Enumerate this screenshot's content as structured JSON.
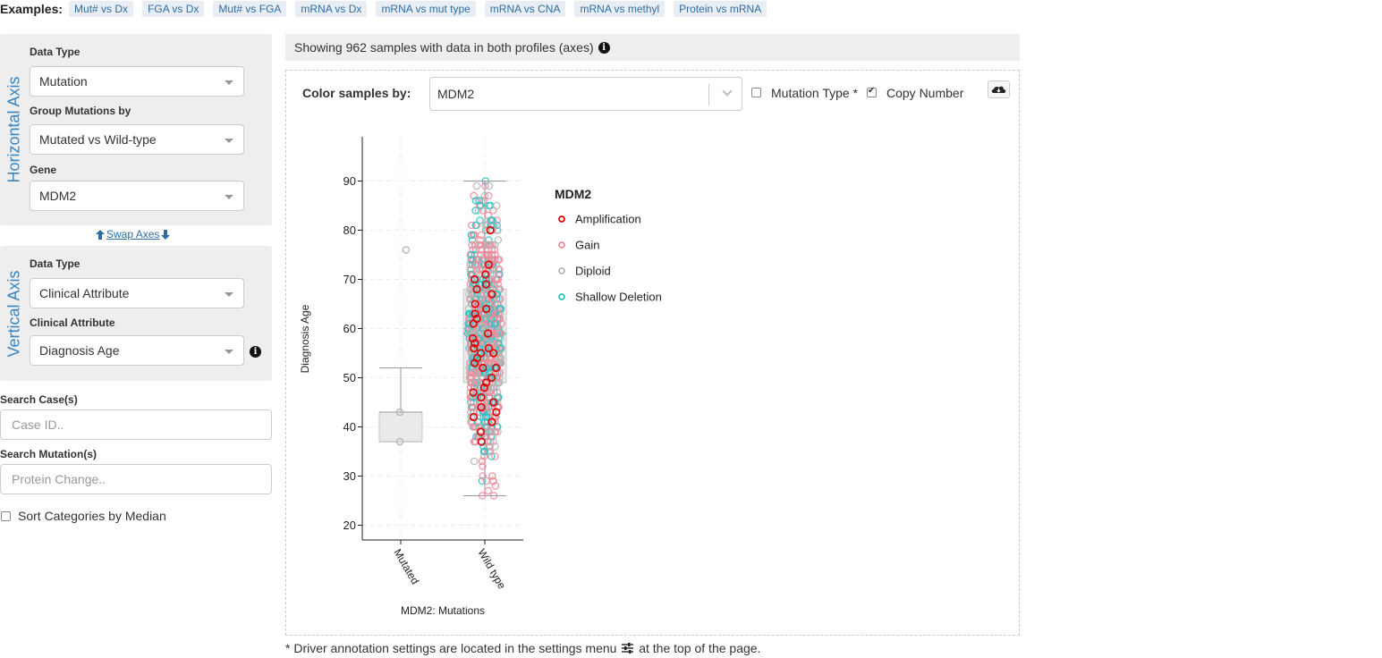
{
  "examples": {
    "label": "Examples:",
    "items": [
      "Mut# vs Dx",
      "FGA vs Dx",
      "Mut# vs FGA",
      "mRNA vs Dx",
      "mRNA vs mut type",
      "mRNA vs CNA",
      "mRNA vs methyl",
      "Protein vs mRNA"
    ]
  },
  "horizontal": {
    "title": "Horizontal Axis",
    "data_type_label": "Data Type",
    "data_type_value": "Mutation",
    "group_label": "Group Mutations by",
    "group_value": "Mutated vs Wild-type",
    "gene_label": "Gene",
    "gene_value": "MDM2"
  },
  "swap": {
    "label": "Swap Axes"
  },
  "vertical": {
    "title": "Vertical Axis",
    "data_type_label": "Data Type",
    "data_type_value": "Clinical Attribute",
    "attr_label": "Clinical Attribute",
    "attr_value": "Diagnosis Age"
  },
  "search_case": {
    "label": "Search Case(s)",
    "placeholder": "Case ID.."
  },
  "search_mutation": {
    "label": "Search Mutation(s)",
    "placeholder": "Protein Change.."
  },
  "sort_median": {
    "label": "Sort Categories by Median",
    "checked": false
  },
  "showing": {
    "text": "Showing 962 samples with data in both profiles (axes)"
  },
  "color_by": {
    "label": "Color samples by:",
    "value": "MDM2",
    "mutation_type_label": "Mutation Type *",
    "mutation_type_checked": false,
    "copy_number_label": "Copy Number",
    "copy_number_checked": true
  },
  "footnote": {
    "before": "* Driver annotation settings are located in the settings menu",
    "after": "at the top of the page."
  },
  "icons": {
    "info": "info-circle-icon",
    "download": "cloud-download-icon",
    "settings": "sliders-icon",
    "swap_up": "arrow-up-icon",
    "swap_down": "arrow-down-icon"
  },
  "colors": {
    "amplification": "#e00000",
    "gain": "#f28a9a",
    "diploid": "#b8b8b8",
    "shallow_deletion": "#2ec4c4"
  },
  "chart_data": {
    "type": "box-scatter",
    "xlabel": "MDM2: Mutations",
    "ylabel": "Diagnosis Age",
    "categories": [
      "Mutated",
      "Wild type"
    ],
    "ylim": [
      17,
      99
    ],
    "yticks": [
      20,
      30,
      40,
      50,
      60,
      70,
      80,
      90
    ],
    "legend": {
      "title": "MDM2",
      "position": "right",
      "entries": [
        {
          "label": "Amplification",
          "color": "#e00000"
        },
        {
          "label": "Gain",
          "color": "#f28a9a"
        },
        {
          "label": "Diploid",
          "color": "#b8b8b8"
        },
        {
          "label": "Shallow Deletion",
          "color": "#2ec4c4"
        }
      ]
    },
    "boxes": [
      {
        "category": "Mutated",
        "min": 37,
        "q1": 37,
        "median": 43,
        "q3": 43,
        "max": 52
      },
      {
        "category": "Wild type",
        "min": 26,
        "q1": 49,
        "median": 59,
        "q3": 68,
        "max": 90
      }
    ],
    "mutated_points": [
      {
        "y": 76,
        "cna": "Diploid"
      },
      {
        "y": 43,
        "cna": "Diploid"
      },
      {
        "y": 37,
        "cna": "Diploid"
      }
    ],
    "wildtype_amplification_ages": [
      80,
      73,
      71,
      70,
      69,
      68,
      67,
      65,
      64,
      63,
      62,
      61,
      59,
      58,
      57,
      56,
      56,
      55,
      55,
      54,
      53,
      52,
      52,
      50,
      49,
      48,
      47,
      46,
      45,
      44,
      43,
      42,
      41,
      39,
      37
    ]
  }
}
